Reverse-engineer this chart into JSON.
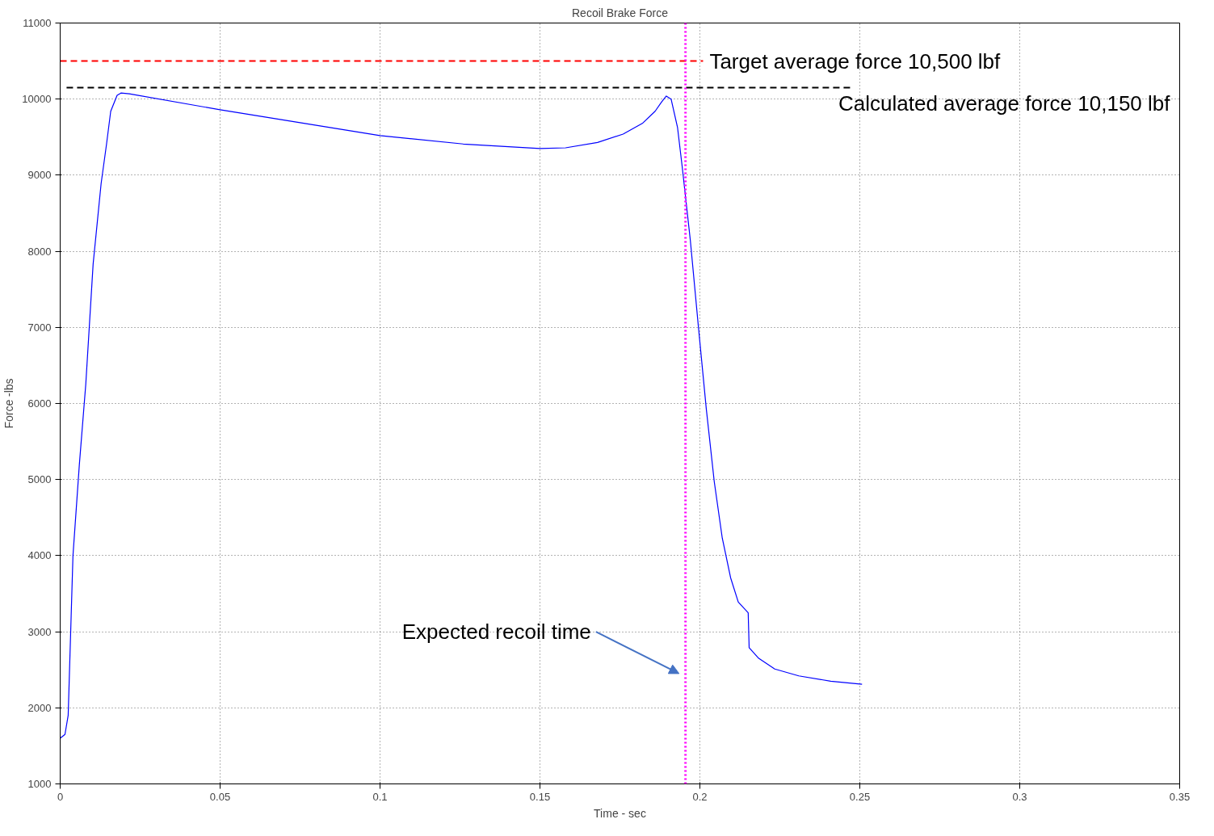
{
  "chart_data": {
    "type": "line",
    "title": "Recoil Brake Force",
    "xlabel": "Time - sec",
    "ylabel": "Force -lbs",
    "xlim": [
      0,
      0.35
    ],
    "ylim": [
      1000,
      11000
    ],
    "xticks": [
      0,
      0.05,
      0.1,
      0.15,
      0.2,
      0.25,
      0.3,
      0.35
    ],
    "yticks": [
      1000,
      2000,
      3000,
      4000,
      5000,
      6000,
      7000,
      8000,
      9000,
      10000,
      11000
    ],
    "grid": true,
    "marker": "none",
    "series": [
      {
        "color": "#0000ff",
        "line_style": "solid",
        "x": [
          0,
          0.0015,
          0.0025,
          0.004,
          0.006,
          0.008,
          0.0103,
          0.0128,
          0.0145,
          0.0158,
          0.0178,
          0.019,
          0.0216,
          0.05,
          0.1,
          0.126,
          0.15,
          0.158,
          0.168,
          0.176,
          0.182,
          0.186,
          0.188,
          0.1895,
          0.191,
          0.193,
          0.1945,
          0.197,
          0.1996,
          0.202,
          0.2045,
          0.207,
          0.2096,
          0.212,
          0.2151,
          0.2154,
          0.2184,
          0.2234,
          0.2309,
          0.2409,
          0.2507
        ],
        "values": [
          1600,
          1650,
          1900,
          4000,
          5200,
          6250,
          7830,
          8890,
          9410,
          9840,
          10050,
          10080,
          10070,
          9860,
          9520,
          9410,
          9350,
          9360,
          9430,
          9540,
          9680,
          9840,
          9960,
          10040,
          10000,
          9630,
          9100,
          8150,
          6980,
          5930,
          4970,
          4230,
          3710,
          3390,
          3250,
          2790,
          2650,
          2510,
          2420,
          2350,
          2310
        ]
      },
      {
        "name": "Target  average force 10,500 lbf",
        "color": "#ff0000",
        "line_style": "dashed",
        "x": [
          0,
          0.201
        ],
        "values": [
          10500,
          10500
        ]
      },
      {
        "name": "Calculated average force 10,150 lbf",
        "color": "#000000",
        "line_style": "dashed",
        "x": [
          0.002,
          0.247
        ],
        "values": [
          10150,
          10150
        ]
      }
    ],
    "ref_lines": [
      {
        "axis": "x",
        "value": 0.1955,
        "color": "#ff00ff",
        "line_style": "dotted"
      }
    ],
    "annotations": [
      "Expected recoil time"
    ]
  }
}
